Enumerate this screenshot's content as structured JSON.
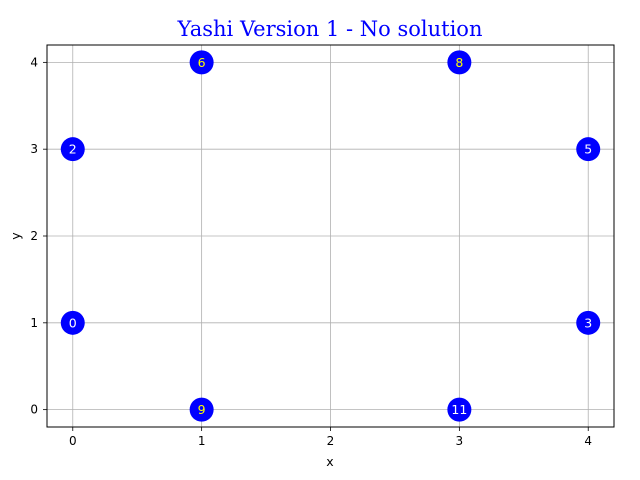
{
  "chart_data": {
    "type": "scatter",
    "title": "Yashi Version 1 - No solution",
    "xlabel": "x",
    "ylabel": "y",
    "xlim": [
      -0.2,
      4.2
    ],
    "ylim": [
      -0.2,
      4.2
    ],
    "xticks": [
      "0",
      "1",
      "2",
      "3",
      "4"
    ],
    "yticks": [
      "0",
      "1",
      "2",
      "3",
      "4"
    ],
    "grid": true,
    "marker_color": "#0000ff",
    "points": [
      {
        "x": 0,
        "y": 1,
        "label": "0",
        "label_color": "#ffffff"
      },
      {
        "x": 0,
        "y": 3,
        "label": "2",
        "label_color": "#ffffff"
      },
      {
        "x": 1,
        "y": 4,
        "label": "6",
        "label_color": "#ffff00"
      },
      {
        "x": 1,
        "y": 0,
        "label": "9",
        "label_color": "#ffff00"
      },
      {
        "x": 3,
        "y": 4,
        "label": "8",
        "label_color": "#ffff00"
      },
      {
        "x": 3,
        "y": 0,
        "label": "11",
        "label_color": "#ffffff"
      },
      {
        "x": 4,
        "y": 3,
        "label": "5",
        "label_color": "#ffffff"
      },
      {
        "x": 4,
        "y": 1,
        "label": "3",
        "label_color": "#ffffff"
      }
    ]
  }
}
